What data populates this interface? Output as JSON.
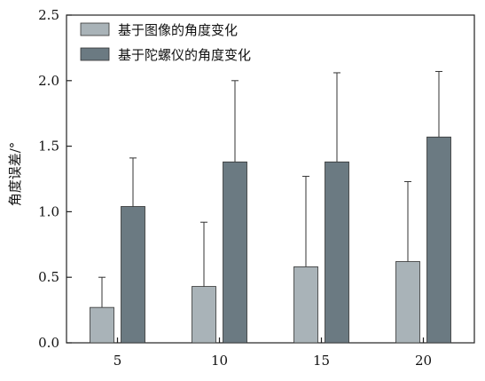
{
  "chart_data": {
    "type": "bar",
    "title": "",
    "xlabel": "",
    "ylabel": "角度误差/°",
    "categories": [
      "5",
      "10",
      "15",
      "20"
    ],
    "ylim": [
      0,
      2.5
    ],
    "yticks": [
      "0.0",
      "0.5",
      "1.0",
      "1.5",
      "2.0",
      "2.5"
    ],
    "error_bars": "upper",
    "legend_position": "top-left",
    "grid": false,
    "series": [
      {
        "name": "基于图像的角度变化",
        "color": "#a9b3b8",
        "values": [
          0.27,
          0.43,
          0.58,
          0.62
        ],
        "errors": [
          0.23,
          0.49,
          0.69,
          0.61
        ]
      },
      {
        "name": "基于陀螺仪的角度变化",
        "color": "#6b7a82",
        "values": [
          1.04,
          1.38,
          1.38,
          1.57
        ],
        "errors": [
          0.37,
          0.62,
          0.68,
          0.5
        ]
      }
    ]
  }
}
